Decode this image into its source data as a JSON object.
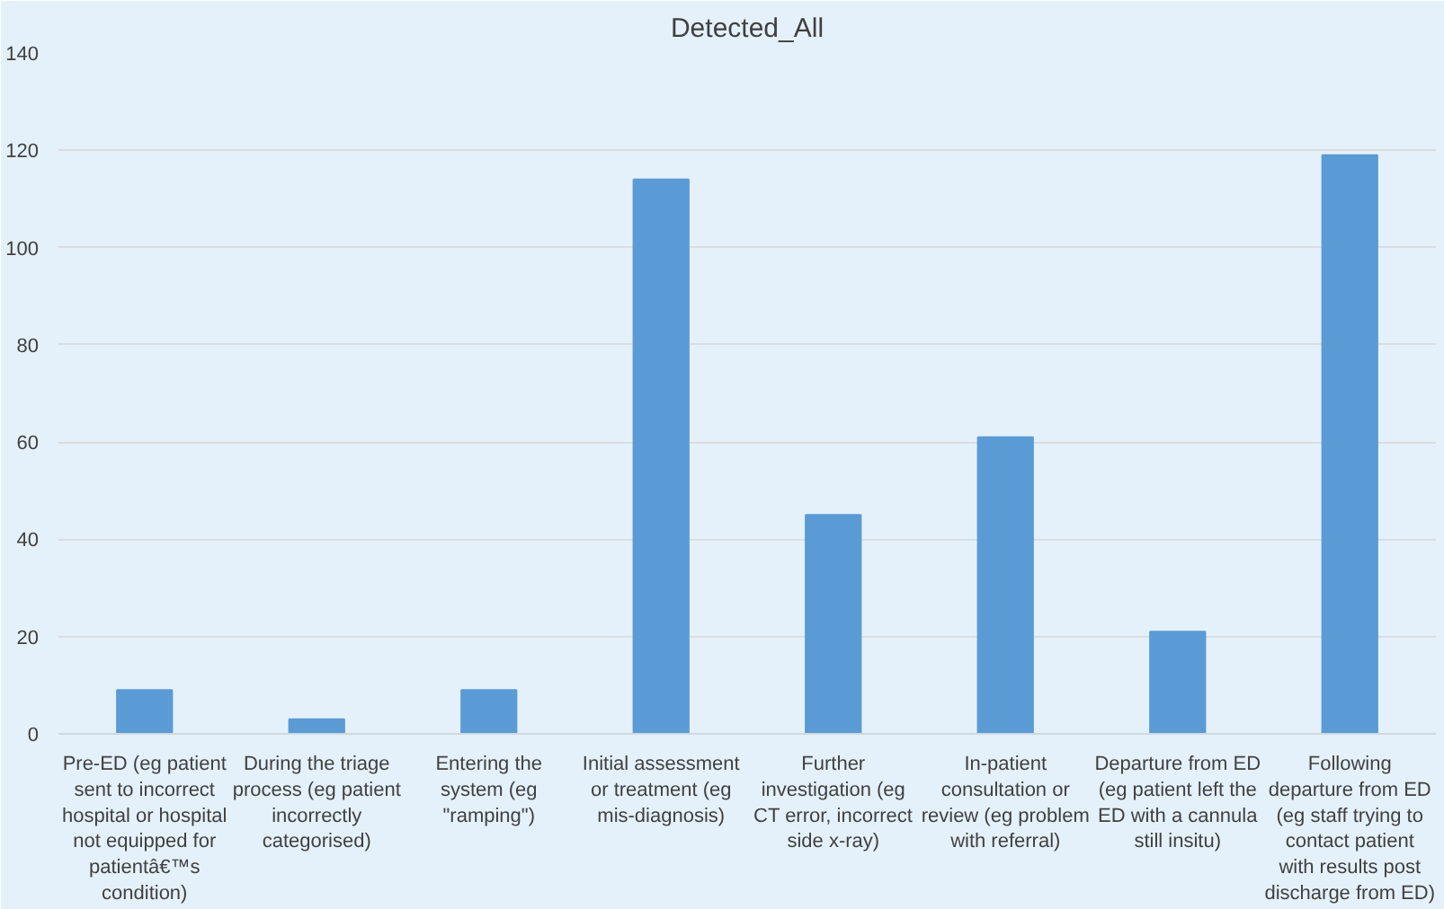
{
  "chart_data": {
    "type": "bar",
    "title": "Detected_All",
    "categories": [
      "Pre-ED (eg patient\nsent to incorrect\nhospital or hospital\nnot equipped for\npatientâ€™s\ncondition)",
      "During the triage\nprocess (eg patient\nincorrectly\ncategorised)",
      "Entering the\nsystem (eg\n\"ramping\")",
      "Initial assessment\nor treatment (eg\nmis-diagnosis)",
      "Further\ninvestigation (eg\nCT error, incorrect\nside x-ray)",
      "In-patient\nconsultation or\nreview (eg problem\nwith referral)",
      "Departure from ED\n(eg patient left the\nED with a cannula\nstill insitu)",
      "Following\ndeparture from ED\n(eg staff trying to\ncontact patient\nwith results post\ndischarge from ED)"
    ],
    "values": [
      9,
      3,
      9,
      114,
      45,
      61,
      21,
      119
    ],
    "color": "#5b9bd5",
    "ylim": [
      0,
      140
    ],
    "yticks": [
      0,
      20,
      40,
      60,
      80,
      100,
      120,
      140
    ],
    "grid": "y"
  }
}
